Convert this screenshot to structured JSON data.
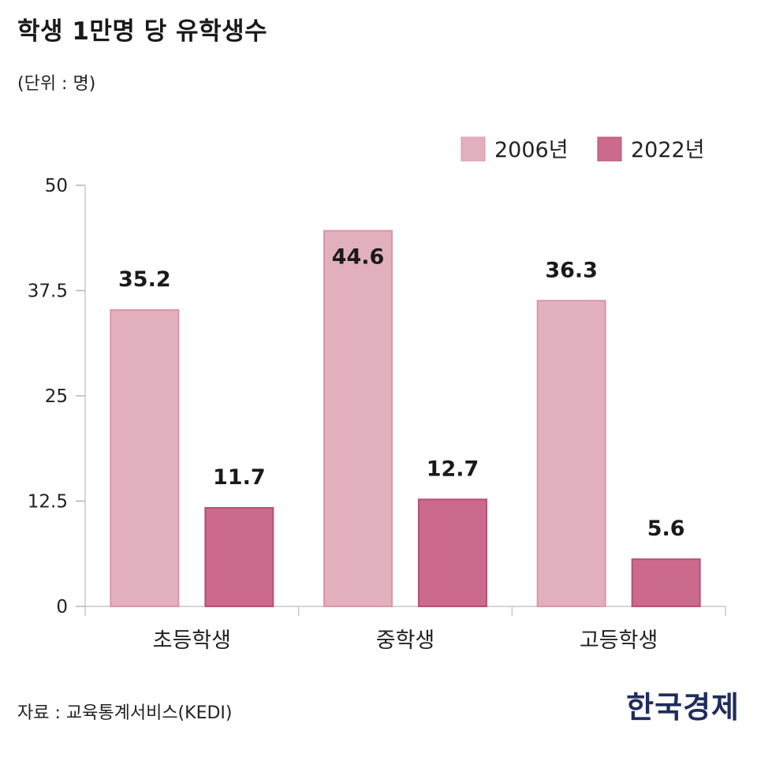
{
  "title": "학생 1만명 당 유학생수",
  "unit": "(단위 : 명)",
  "source": "자료 : 교육통계서비스(KEDI)",
  "brand": "한국경제",
  "chart_data": {
    "type": "bar",
    "categories": [
      "초등학생",
      "중학생",
      "고등학생"
    ],
    "series": [
      {
        "name": "2006년",
        "values": [
          35.2,
          44.6,
          36.3
        ],
        "color": "#e2b0bd",
        "edge": "#d996aa"
      },
      {
        "name": "2022년",
        "values": [
          11.7,
          12.7,
          5.6
        ],
        "color": "#cb6a8c",
        "edge": "#b94f75"
      }
    ],
    "ylim": [
      0,
      50
    ],
    "yticks": [
      "0",
      "12.5",
      "25",
      "37.5",
      "50"
    ],
    "legend": "top-right",
    "grid": false
  }
}
